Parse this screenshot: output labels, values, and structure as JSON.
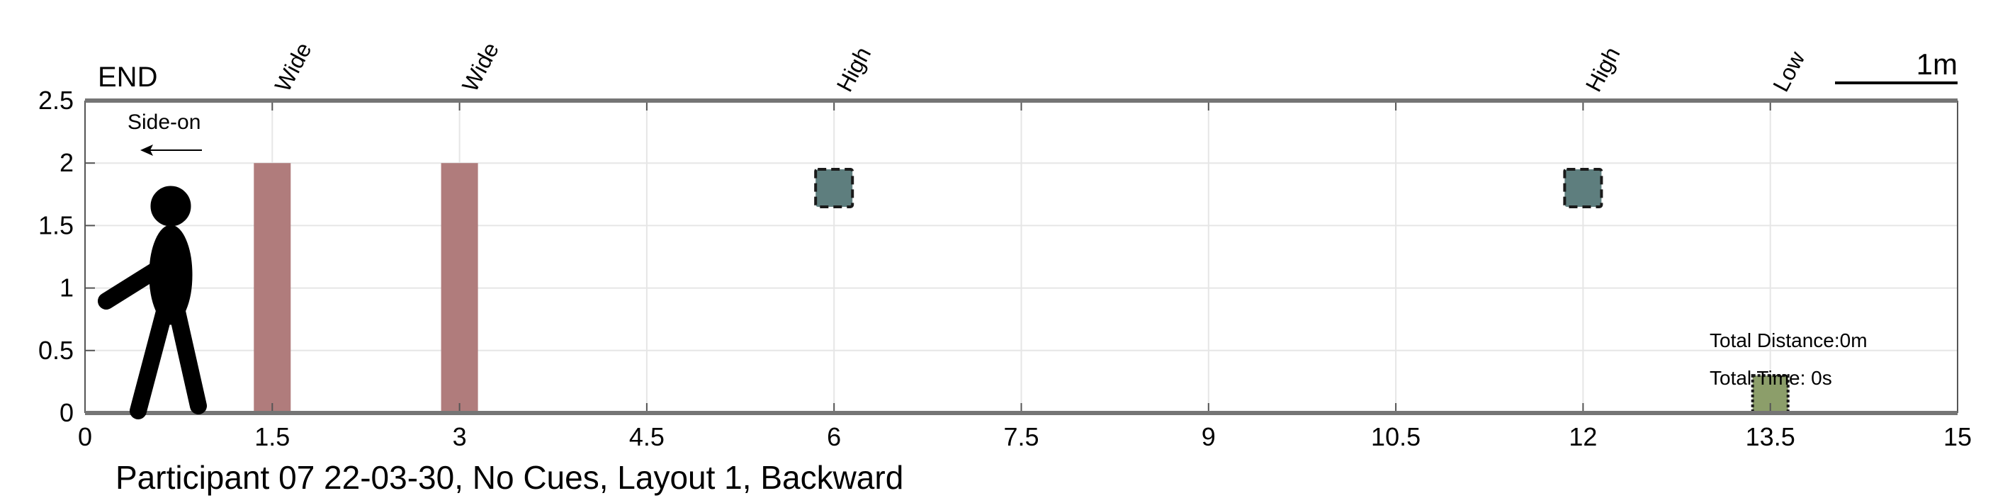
{
  "chart_data": {
    "type": "scatter",
    "title": "Participant 07 22-03-30, No Cues, Layout 1, Backward",
    "xlim": [
      0,
      15
    ],
    "ylim": [
      0,
      2.5
    ],
    "x_ticks": [
      "0",
      "1.5",
      "3",
      "4.5",
      "6",
      "7.5",
      "9",
      "10.5",
      "12",
      "13.5",
      "15"
    ],
    "y_ticks": [
      "0",
      "0.5",
      "1",
      "1.5",
      "2",
      "2.5"
    ],
    "grid": true,
    "end_label": "END",
    "scale_bar_label": "1m",
    "scale_bar_length_m": 1,
    "direction_label": "Side-on",
    "direction": "left",
    "obstacles": [
      {
        "label": "Wide",
        "type": "wide",
        "x": 1.5,
        "y_bottom": 0,
        "y_top": 2.0,
        "color": "#b07c7c"
      },
      {
        "label": "Wide",
        "type": "wide",
        "x": 3.0,
        "y_bottom": 0,
        "y_top": 2.0,
        "color": "#b07c7c"
      },
      {
        "label": "High",
        "type": "high",
        "x": 6.0,
        "y_bottom": 1.65,
        "y_top": 1.95,
        "color": "#5e7e7e"
      },
      {
        "label": "High",
        "type": "high",
        "x": 12.0,
        "y_bottom": 1.65,
        "y_top": 1.95,
        "color": "#5e7e7e"
      },
      {
        "label": "Low",
        "type": "low",
        "x": 13.5,
        "y_bottom": 0,
        "y_top": 0.3,
        "color": "#8c9e6a"
      }
    ],
    "total_distance": "Total Distance:0m",
    "total_time": "Total Time: 0s"
  }
}
